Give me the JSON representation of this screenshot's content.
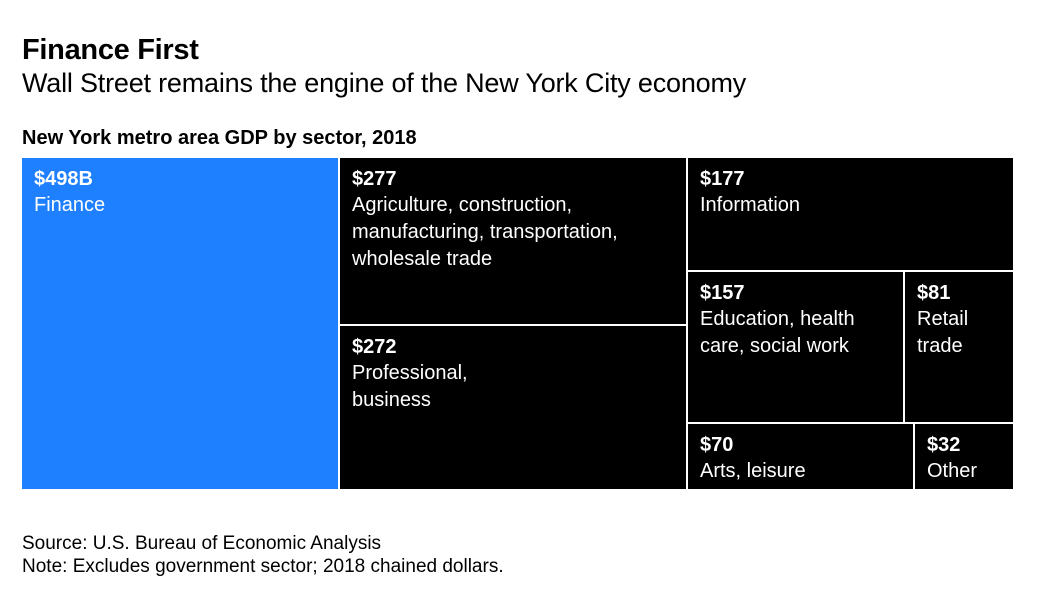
{
  "header": {
    "title": "Finance First",
    "subtitle": "Wall Street remains the engine of the New York City economy"
  },
  "chart_data": {
    "type": "treemap",
    "title": "New York metro area GDP by sector, 2018",
    "units": "billions of 2018 chained dollars",
    "highlight_color": "#1e80ff",
    "default_color": "#000000",
    "text_color": "#ffffff",
    "items": [
      {
        "name": "finance",
        "value": 498,
        "value_label": "$498B",
        "label": "Finance",
        "highlight": true
      },
      {
        "name": "agriculture-construction",
        "value": 277,
        "value_label": "$277",
        "label": "Agriculture, construction,\nmanufacturing, transportation,\nwholesale trade",
        "highlight": false
      },
      {
        "name": "professional-business",
        "value": 272,
        "value_label": "$272",
        "label": "Professional,\nbusiness",
        "highlight": false
      },
      {
        "name": "information",
        "value": 177,
        "value_label": "$177",
        "label": "Information",
        "highlight": false
      },
      {
        "name": "education-health",
        "value": 157,
        "value_label": "$157",
        "label": "Education, health\ncare, social work",
        "highlight": false
      },
      {
        "name": "retail-trade",
        "value": 81,
        "value_label": "$81",
        "label": "Retail\ntrade",
        "highlight": false
      },
      {
        "name": "arts-leisure",
        "value": 70,
        "value_label": "$70",
        "label": "Arts, leisure",
        "highlight": false
      },
      {
        "name": "other",
        "value": 32,
        "value_label": "$32",
        "label": "Other",
        "highlight": false
      }
    ]
  },
  "footer": {
    "source": "Source: U.S. Bureau of Economic Analysis",
    "note": "Note: Excludes government sector; 2018 chained dollars."
  }
}
